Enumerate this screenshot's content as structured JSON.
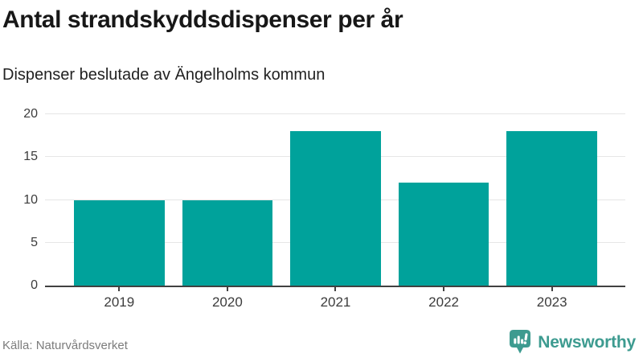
{
  "header": {
    "title": "Antal strandskyddsdispenser per år",
    "subtitle": "Dispenser beslutade av Ängelholms kommun"
  },
  "chart_data": {
    "type": "bar",
    "categories": [
      "2019",
      "2020",
      "2021",
      "2022",
      "2023"
    ],
    "values": [
      10,
      10,
      18,
      12,
      18
    ],
    "title": "Antal strandskyddsdispenser per år",
    "subtitle": "Dispenser beslutade av Ängelholms kommun",
    "xlabel": "",
    "ylabel": "",
    "ylim": [
      0,
      20
    ],
    "yticks": [
      0,
      5,
      10,
      15,
      20
    ],
    "bar_color": "#00a29b",
    "gridline_color": "#e6e6e6",
    "axis_color": "#414141",
    "grid": "horizontal",
    "legend": "none"
  },
  "footer": {
    "source": "Källa: Naturvårdsverket",
    "logo": {
      "text": "Newsworthy",
      "color": "#3d9b90",
      "icon": "newsworthy-speech-bubble-bar-chart-icon"
    }
  }
}
